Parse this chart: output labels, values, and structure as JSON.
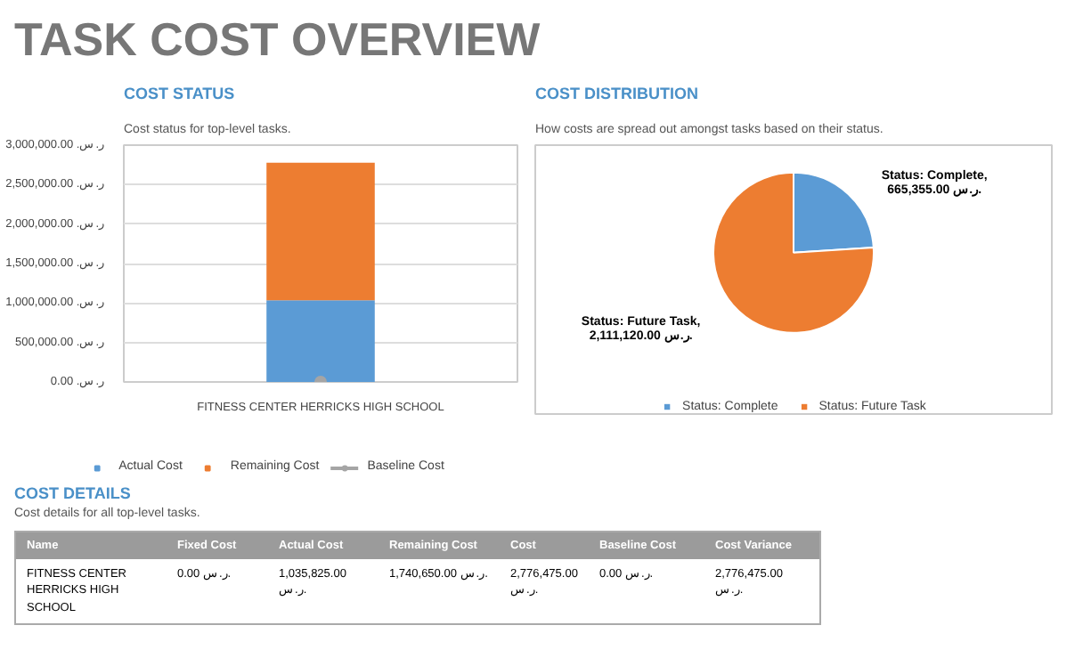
{
  "chart_data": [
    {
      "type": "bar",
      "title": "COST STATUS",
      "subtitle": "Cost status for top-level tasks.",
      "annotations": [
        "TASK COST OVERVIEW"
      ],
      "categories": [
        "FITNESS CENTER HERRICKS HIGH SCHOOL"
      ],
      "stacked": true,
      "series": [
        {
          "name": "Actual Cost",
          "color": "#5b9bd5",
          "values": [
            1035825
          ]
        },
        {
          "name": "Remaining Cost",
          "color": "#ed7d31",
          "values": [
            1740650
          ]
        },
        {
          "name": "Baseline Cost",
          "color": "#a5a5a5",
          "values": [
            0
          ],
          "type": "line",
          "marker": "circle"
        }
      ],
      "ylim": [
        0,
        3000000
      ],
      "yticks": [
        {
          "value": 0,
          "label": "ر.س. 0.00"
        },
        {
          "value": 500000,
          "label": "ر.س. 500,000.00"
        },
        {
          "value": 1000000,
          "label": "ر.س. 1,000,000.00"
        },
        {
          "value": 1500000,
          "label": "ر.س. 1,500,000.00"
        },
        {
          "value": 2000000,
          "label": "ر.س. 2,000,000.00"
        },
        {
          "value": 2500000,
          "label": "ر.س. 2,500,000.00"
        },
        {
          "value": 3000000,
          "label": "ر.س. 3,000,000.00"
        }
      ],
      "grid": "y",
      "legend": "bottom"
    },
    {
      "type": "pie",
      "title": "COST DISTRIBUTION",
      "subtitle": "How costs are spread out amongst tasks based on their status.",
      "categories": [
        "Status: Complete",
        "Status: Future Task"
      ],
      "values": [
        665355,
        2111120
      ],
      "colors": [
        "#5b9bd5",
        "#ed7d31"
      ],
      "value_labels": [
        "Status: Complete, 665,355.00 ر.س.",
        "Status: Future Task, 2,111,120.00 ر.س."
      ],
      "legend": "bottom"
    },
    {
      "type": "other",
      "title": "COST DETAILS",
      "subtitle": "Cost details for all top-level tasks.",
      "annotations": [
        "Name",
        "Fixed Cost",
        "Actual Cost",
        "Remaining Cost",
        "Cost",
        "Baseline Cost",
        "Cost Variance",
        "FITNESS CENTER HERRICKS HIGH SCHOOL",
        "0.00 ر.س.",
        "1,035,825.00 ر.س.",
        "1,740,650.00 ر.س.",
        "2,776,475.00 ر.س.",
        "0.00 ر.س.",
        "2,776,475.00 ر.س."
      ]
    }
  ]
}
